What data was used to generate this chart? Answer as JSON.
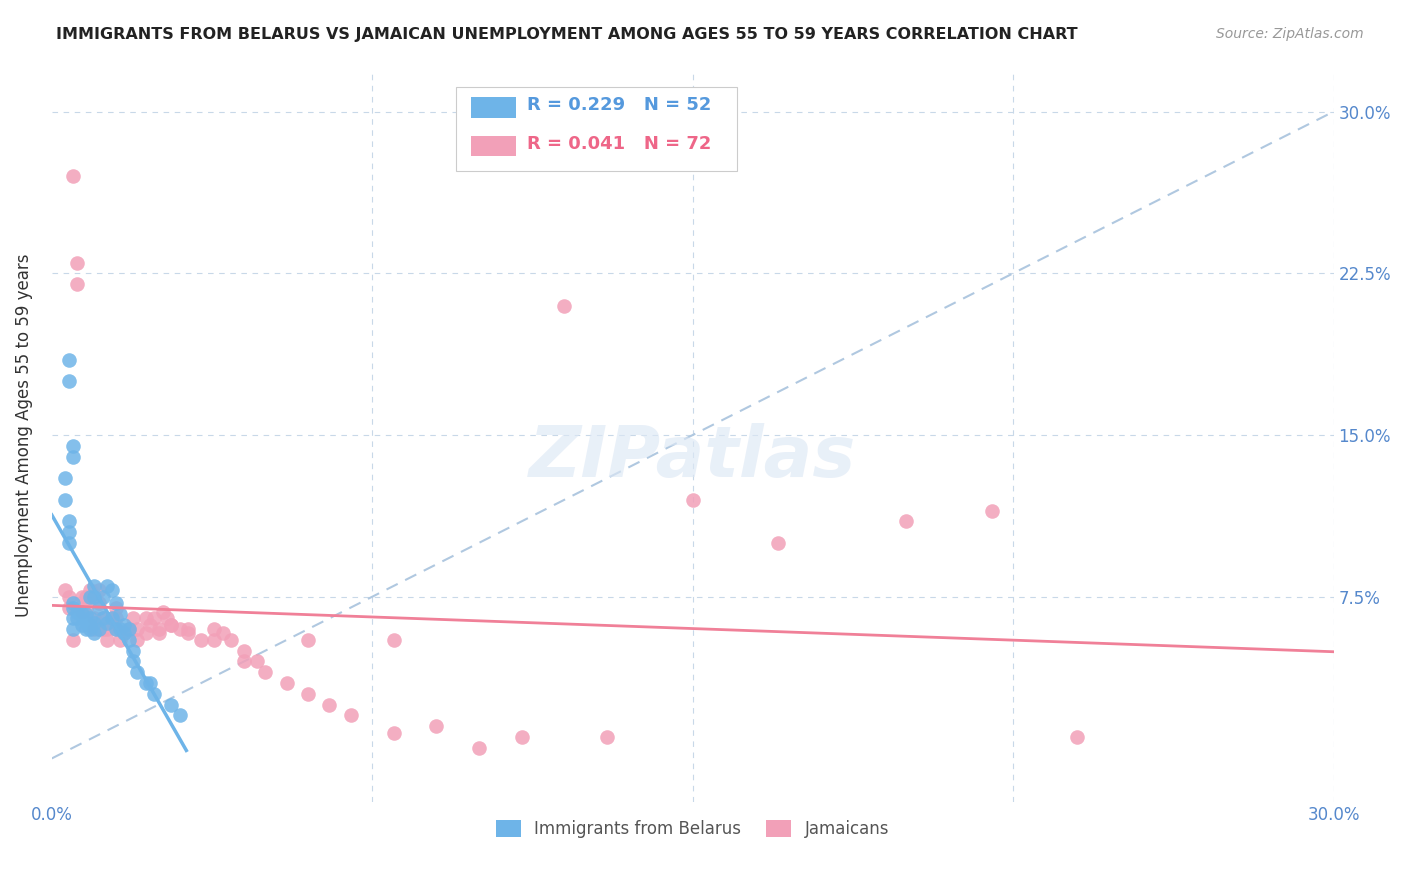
{
  "title": "IMMIGRANTS FROM BELARUS VS JAMAICAN UNEMPLOYMENT AMONG AGES 55 TO 59 YEARS CORRELATION CHART",
  "source": "Source: ZipAtlas.com",
  "ylabel": "Unemployment Among Ages 55 to 59 years",
  "xlim": [
    0.0,
    0.3
  ],
  "ylim": [
    -0.02,
    0.32
  ],
  "ytick_vals": [
    0.075,
    0.15,
    0.225,
    0.3
  ],
  "ytick_labels_right": [
    "7.5%",
    "15.0%",
    "22.5%",
    "30.0%"
  ],
  "xtick_vals": [
    0.0,
    0.075,
    0.15,
    0.225,
    0.3
  ],
  "xtick_labels": [
    "0.0%",
    "",
    "",
    "",
    "30.0%"
  ],
  "legend_r1": "R = 0.229",
  "legend_n1": "N = 52",
  "legend_r2": "R = 0.041",
  "legend_n2": "N = 72",
  "color_blue": "#6eb4e8",
  "color_pink": "#f2a0b8",
  "color_blue_line": "#6eb4e8",
  "color_pink_line": "#f08098",
  "color_dashed": "#b0c8e0",
  "color_grid": "#c8d8e8",
  "watermark": "ZIPatlas",
  "blue_scatter_x": [
    0.005,
    0.005,
    0.005,
    0.006,
    0.006,
    0.007,
    0.007,
    0.008,
    0.008,
    0.008,
    0.009,
    0.009,
    0.009,
    0.009,
    0.01,
    0.01,
    0.01,
    0.01,
    0.011,
    0.011,
    0.012,
    0.012,
    0.013,
    0.013,
    0.014,
    0.014,
    0.015,
    0.015,
    0.016,
    0.016,
    0.017,
    0.017,
    0.018,
    0.018,
    0.019,
    0.019,
    0.02,
    0.022,
    0.023,
    0.024,
    0.028,
    0.03,
    0.003,
    0.003,
    0.004,
    0.004,
    0.004,
    0.004,
    0.004,
    0.005,
    0.005,
    0.005
  ],
  "blue_scatter_y": [
    0.065,
    0.07,
    0.072,
    0.065,
    0.068,
    0.062,
    0.067,
    0.06,
    0.063,
    0.067,
    0.06,
    0.062,
    0.065,
    0.075,
    0.058,
    0.063,
    0.075,
    0.08,
    0.06,
    0.07,
    0.065,
    0.075,
    0.063,
    0.08,
    0.065,
    0.078,
    0.06,
    0.072,
    0.06,
    0.067,
    0.058,
    0.062,
    0.055,
    0.06,
    0.05,
    0.045,
    0.04,
    0.035,
    0.035,
    0.03,
    0.025,
    0.02,
    0.12,
    0.13,
    0.1,
    0.105,
    0.11,
    0.175,
    0.185,
    0.14,
    0.145,
    0.06
  ],
  "pink_scatter_x": [
    0.005,
    0.006,
    0.006,
    0.007,
    0.008,
    0.008,
    0.009,
    0.01,
    0.01,
    0.011,
    0.011,
    0.012,
    0.012,
    0.013,
    0.013,
    0.014,
    0.015,
    0.015,
    0.016,
    0.017,
    0.018,
    0.019,
    0.02,
    0.02,
    0.022,
    0.023,
    0.024,
    0.025,
    0.026,
    0.027,
    0.028,
    0.03,
    0.032,
    0.035,
    0.038,
    0.04,
    0.042,
    0.045,
    0.048,
    0.05,
    0.055,
    0.06,
    0.065,
    0.07,
    0.08,
    0.09,
    0.1,
    0.11,
    0.13,
    0.15,
    0.17,
    0.2,
    0.22,
    0.24,
    0.003,
    0.004,
    0.004,
    0.005,
    0.007,
    0.009,
    0.011,
    0.015,
    0.018,
    0.022,
    0.025,
    0.028,
    0.032,
    0.038,
    0.045,
    0.06,
    0.08,
    0.12
  ],
  "pink_scatter_y": [
    0.27,
    0.22,
    0.23,
    0.075,
    0.075,
    0.07,
    0.078,
    0.065,
    0.06,
    0.072,
    0.078,
    0.06,
    0.065,
    0.055,
    0.06,
    0.065,
    0.06,
    0.07,
    0.055,
    0.058,
    0.06,
    0.065,
    0.06,
    0.055,
    0.058,
    0.062,
    0.065,
    0.06,
    0.068,
    0.065,
    0.062,
    0.06,
    0.058,
    0.055,
    0.06,
    0.058,
    0.055,
    0.05,
    0.045,
    0.04,
    0.035,
    0.03,
    0.025,
    0.02,
    0.012,
    0.015,
    0.005,
    0.01,
    0.01,
    0.12,
    0.1,
    0.11,
    0.115,
    0.01,
    0.078,
    0.075,
    0.07,
    0.055,
    0.068,
    0.075,
    0.06,
    0.065,
    0.06,
    0.065,
    0.058,
    0.062,
    0.06,
    0.055,
    0.045,
    0.055,
    0.055,
    0.21
  ]
}
